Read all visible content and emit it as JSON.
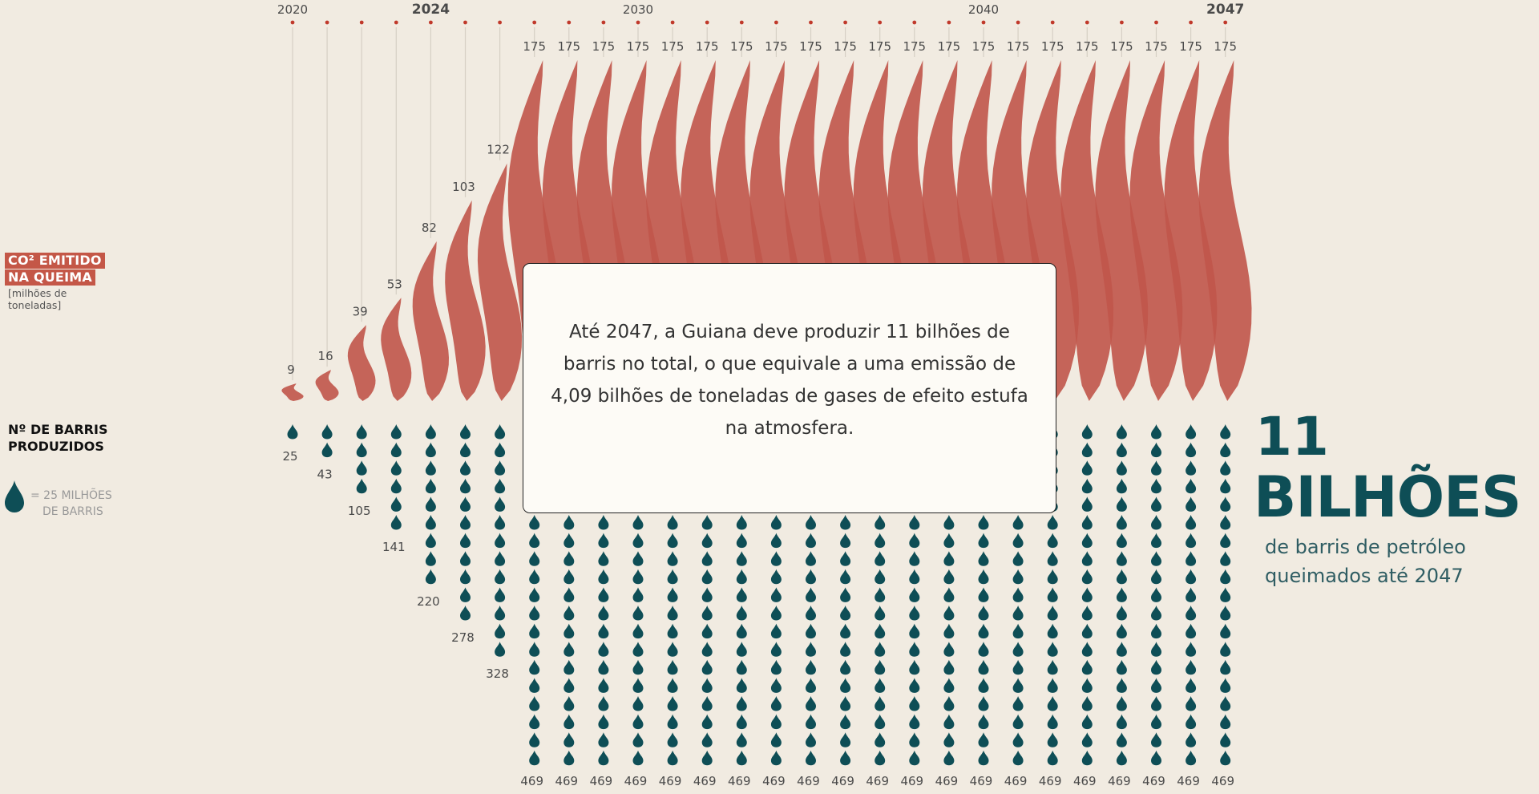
{
  "chart_data": {
    "type": "pictogram",
    "years": [
      2020,
      2021,
      2022,
      2023,
      2024,
      2025,
      2026,
      2027,
      2028,
      2029,
      2030,
      2031,
      2032,
      2033,
      2034,
      2035,
      2036,
      2037,
      2038,
      2039,
      2040,
      2041,
      2042,
      2043,
      2044,
      2045,
      2046,
      2047
    ],
    "year_labels": [
      "2020",
      "",
      "",
      "",
      "2024",
      "",
      "",
      "",
      "",
      "",
      "2030",
      "",
      "",
      "",
      "",
      "",
      "",
      "",
      "",
      "",
      "2040",
      "",
      "",
      "",
      "",
      "",
      "",
      "2047"
    ],
    "bold_years": [
      2024,
      2047
    ],
    "co2_emitted": [
      9,
      16,
      39,
      53,
      82,
      103,
      122,
      175,
      175,
      175,
      175,
      175,
      175,
      175,
      175,
      175,
      175,
      175,
      175,
      175,
      175,
      175,
      175,
      175,
      175,
      175,
      175,
      175
    ],
    "barrels_produced": [
      25,
      43,
      105,
      141,
      220,
      278,
      328,
      469,
      469,
      469,
      469,
      469,
      469,
      469,
      469,
      469,
      469,
      469,
      469,
      469,
      469,
      469,
      469,
      469,
      469,
      469,
      469,
      469
    ],
    "drop_unit_millions": 25,
    "colors": {
      "background": "#f1ebe1",
      "flame": "#c0554a",
      "drop": "#0e4e56",
      "year_dot": "#c0392b",
      "stem": "#d6cfc4"
    }
  },
  "legend": {
    "co2_title_line1": "CO² EMITIDO",
    "co2_title_line2": "NA QUEIMA",
    "co2_unit_line1": "[milhões de",
    "co2_unit_line2": "toneladas]",
    "barrels_title_line1": "Nº DE BARRIS",
    "barrels_title_line2": "PRODUZIDOS",
    "drop_legend_line1": "= 25 MILHÕES",
    "drop_legend_line2": "DE BARRIS",
    "drop_icon": "oil-drop-icon"
  },
  "total": {
    "number": "11",
    "unit": "BILHÕES",
    "desc_line1": "de barris de petróleo",
    "desc_line2": "queimados até 2047"
  },
  "popup": {
    "text": "Até 2047, a Guiana deve produzir 11 bilhões de barris no total, o que equivale a uma emissão de 4,09 bilhões de toneladas de gases de efeito estufa na atmosfera."
  }
}
